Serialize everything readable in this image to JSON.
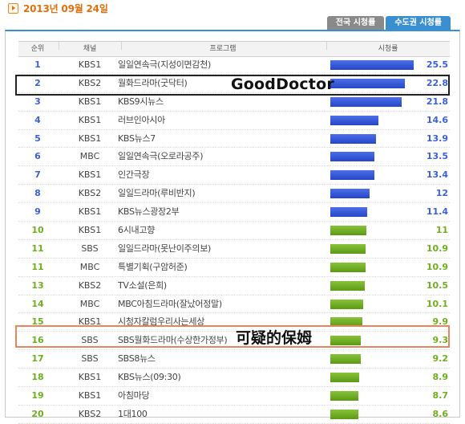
{
  "date": "2013년 09월 24일",
  "tabs": [
    {
      "label": "전국 시청률",
      "active": false
    },
    {
      "label": "수도권 시청률",
      "active": true
    }
  ],
  "columns": {
    "rank": "순위",
    "channel": "채널",
    "program": "프로그램",
    "rating": "시청률"
  },
  "rows": [
    {
      "rank": "1",
      "channel": "KBS1",
      "program": "일일연속극(지성이면감천)",
      "rating": "25.5",
      "color": "blue"
    },
    {
      "rank": "2",
      "channel": "KBS2",
      "program": "월화드라마(굿닥터)",
      "rating": "22.8",
      "color": "blue"
    },
    {
      "rank": "3",
      "channel": "KBS1",
      "program": "KBS9시뉴스",
      "rating": "21.8",
      "color": "blue"
    },
    {
      "rank": "4",
      "channel": "KBS1",
      "program": "러브인아시아",
      "rating": "14.6",
      "color": "blue"
    },
    {
      "rank": "5",
      "channel": "KBS1",
      "program": "KBS뉴스7",
      "rating": "13.9",
      "color": "blue"
    },
    {
      "rank": "6",
      "channel": "MBC",
      "program": "일일연속극(오로라공주)",
      "rating": "13.5",
      "color": "blue"
    },
    {
      "rank": "7",
      "channel": "KBS1",
      "program": "인간극장",
      "rating": "13.4",
      "color": "blue"
    },
    {
      "rank": "8",
      "channel": "KBS2",
      "program": "일일드라마(루비반지)",
      "rating": "12",
      "color": "blue"
    },
    {
      "rank": "9",
      "channel": "KBS1",
      "program": "KBS뉴스광장2부",
      "rating": "11.4",
      "color": "blue"
    },
    {
      "rank": "10",
      "channel": "KBS1",
      "program": "6시내고향",
      "rating": "11",
      "color": "green"
    },
    {
      "rank": "11",
      "channel": "SBS",
      "program": "일일드라마(못난이주의보)",
      "rating": "10.9",
      "color": "green"
    },
    {
      "rank": "11",
      "channel": "MBC",
      "program": "특별기획(구암허준)",
      "rating": "10.9",
      "color": "green"
    },
    {
      "rank": "13",
      "channel": "KBS2",
      "program": "TV소설(은희)",
      "rating": "10.5",
      "color": "green"
    },
    {
      "rank": "14",
      "channel": "MBC",
      "program": "MBC아침드라마(잘났어정말)",
      "rating": "10.1",
      "color": "green"
    },
    {
      "rank": "15",
      "channel": "KBS1",
      "program": "시청자칼럼우리사는세상",
      "rating": "9.9",
      "color": "green"
    },
    {
      "rank": "16",
      "channel": "SBS",
      "program": "SBS월화드라마(수상한가정부)",
      "rating": "9.3",
      "color": "green"
    },
    {
      "rank": "17",
      "channel": "SBS",
      "program": "SBS8뉴스",
      "rating": "9.2",
      "color": "green"
    },
    {
      "rank": "18",
      "channel": "KBS1",
      "program": "KBS뉴스(09:30)",
      "rating": "8.9",
      "color": "green"
    },
    {
      "rank": "19",
      "channel": "KBS1",
      "program": "아침마당",
      "rating": "8.7",
      "color": "green"
    },
    {
      "rank": "20",
      "channel": "KBS2",
      "program": "1대100",
      "rating": "8.6",
      "color": "green"
    }
  ],
  "annotations": {
    "row2": "GoodDoctor",
    "row16": "可疑的保姆"
  },
  "colors": {
    "accent": "#e06f0e",
    "tab_active": "#3a8fd0",
    "bar_top": "#2846c8",
    "bar_rest": "#5c9a14",
    "highlight_black": "#222222",
    "highlight_orange": "#e8855a"
  }
}
